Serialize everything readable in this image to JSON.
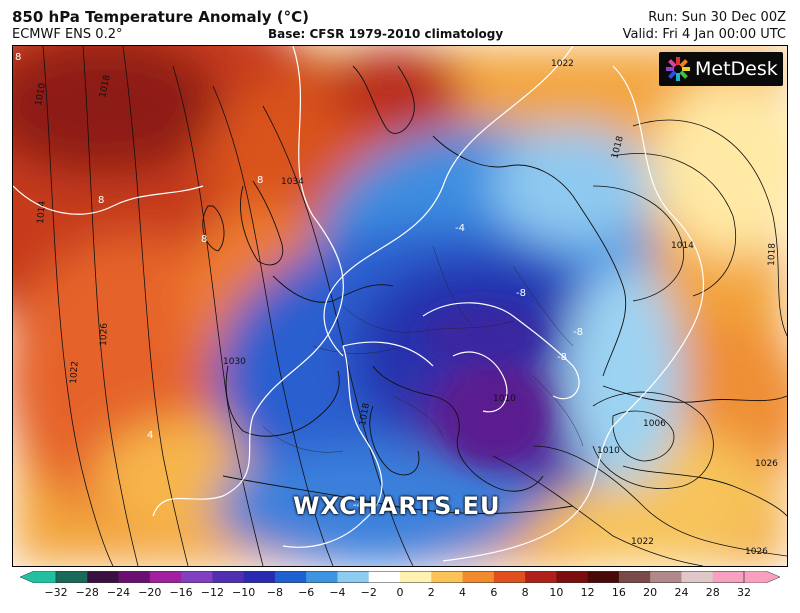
{
  "header": {
    "title": "850 hPa Temperature Anomaly (°C)",
    "model": "ECMWF ENS 0.2°",
    "base": "Base: CFSR 1979-2010 climatology",
    "run": "Run: Sun 30 Dec 00Z",
    "valid": "Valid: Fri 4 Jan 00:00 UTC"
  },
  "logo": {
    "text": "MetDesk"
  },
  "watermark": "WXCHARTS.EU",
  "map_labels": {
    "isotherm": [
      "8",
      "8",
      "8",
      "-4",
      "8",
      "-8",
      "-8",
      "-8",
      "-4",
      "4"
    ],
    "isobar": [
      "1010",
      "1018",
      "1014",
      "1026",
      "1022",
      "1030",
      "1022",
      "1018",
      "1014",
      "1018",
      "1006",
      "1010",
      "1026",
      "1026",
      "1022",
      "1034",
      "1018",
      "1010"
    ]
  },
  "colorbar": {
    "ticks": [
      "−32",
      "−28",
      "−24",
      "−20",
      "−16",
      "−12",
      "−10",
      "−8",
      "−6",
      "−4",
      "−2",
      "0",
      "2",
      "4",
      "6",
      "8",
      "10",
      "12",
      "16",
      "20",
      "24",
      "28",
      "32"
    ],
    "colors": [
      "#20c0a0",
      "#1a6a5a",
      "#3a1040",
      "#6a1070",
      "#a020a0",
      "#8040c0",
      "#5030b0",
      "#2a2ab0",
      "#1e60d0",
      "#3d94e0",
      "#8ecbf0",
      "#ffffff",
      "#fff2b0",
      "#f9c35a",
      "#f28a2e",
      "#e0501e",
      "#b0201a",
      "#7a0e0e",
      "#4a0a0a",
      "#7a4a4a",
      "#b08a8a",
      "#e0c8c8",
      "#f8a0c0"
    ]
  }
}
